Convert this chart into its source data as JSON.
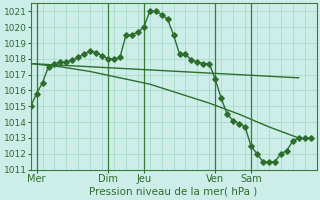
{
  "xlabel": "Pression niveau de la mer( hPa )",
  "ylim": [
    1011,
    1021.5
  ],
  "xlim": [
    0,
    96
  ],
  "bg_color": "#cdeee8",
  "grid_color": "#aad9cc",
  "line_color": "#2d6e2d",
  "tick_color": "#2d6e2d",
  "xtick_positions": [
    2,
    26,
    38,
    62,
    74
  ],
  "xtick_labels": [
    "Mer",
    "Dim",
    "Jeu",
    "Ven",
    "Sam"
  ],
  "ytick_positions": [
    1011,
    1012,
    1013,
    1014,
    1015,
    1016,
    1017,
    1018,
    1019,
    1020,
    1021
  ],
  "vline_positions": [
    2,
    26,
    38,
    62,
    74
  ],
  "line1_x": [
    0,
    2,
    4,
    6,
    8,
    10,
    12,
    14,
    16,
    18,
    20,
    22,
    24,
    26,
    28,
    30,
    32,
    34,
    36,
    38,
    40,
    42,
    44,
    46,
    48,
    50,
    52,
    54,
    56,
    58,
    60,
    62,
    64,
    66,
    68,
    70,
    72,
    74,
    76,
    78,
    80,
    82,
    84,
    86,
    88,
    90,
    92,
    94
  ],
  "line1_y": [
    1015.0,
    1015.8,
    1016.5,
    1017.5,
    1017.7,
    1017.8,
    1017.8,
    1017.9,
    1018.1,
    1018.3,
    1018.5,
    1018.4,
    1018.2,
    1018.0,
    1018.0,
    1018.1,
    1019.5,
    1019.5,
    1019.7,
    1020.0,
    1021.0,
    1021.0,
    1020.8,
    1020.5,
    1019.5,
    1018.3,
    1018.3,
    1017.9,
    1017.8,
    1017.7,
    1017.7,
    1016.7,
    1015.5,
    1014.5,
    1014.1,
    1013.9,
    1013.7,
    1012.5,
    1012.0,
    1011.5,
    1011.5,
    1011.5,
    1012.0,
    1012.2,
    1012.8,
    1013.0,
    1013.0,
    1013.0
  ],
  "line2_x": [
    0,
    10,
    20,
    30,
    40,
    50,
    60,
    70,
    80,
    90
  ],
  "line2_y": [
    1017.7,
    1017.6,
    1017.5,
    1017.4,
    1017.3,
    1017.2,
    1017.1,
    1017.0,
    1016.9,
    1016.8
  ],
  "line3_x": [
    0,
    10,
    20,
    30,
    40,
    50,
    60,
    70,
    80,
    90
  ],
  "line3_y": [
    1017.7,
    1017.5,
    1017.2,
    1016.8,
    1016.4,
    1015.8,
    1015.2,
    1014.5,
    1013.7,
    1013.0
  ]
}
